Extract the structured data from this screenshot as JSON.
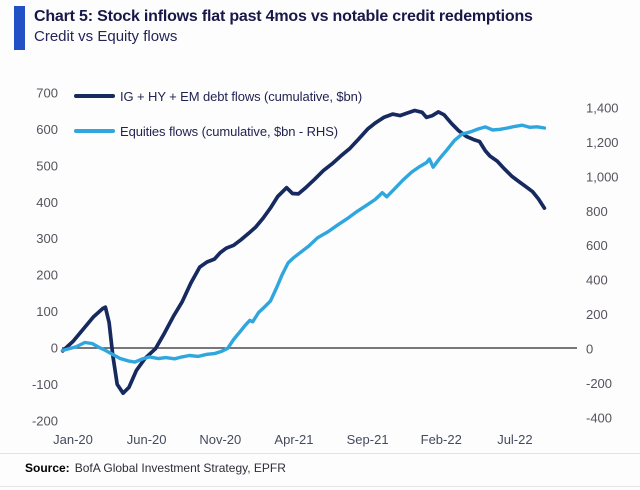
{
  "header": {
    "title": "Chart 5: Stock inflows flat past 4mos vs notable credit redemptions",
    "subtitle": "Credit vs Equity flows",
    "accent_color": "#2151c4"
  },
  "legend": {
    "items": [
      {
        "label": "IG + HY + EM debt flows (cumulative, $bn)",
        "color": "#172a60"
      },
      {
        "label": "Equities flows (cumulative, $bn - RHS)",
        "color": "#2fa6de"
      }
    ]
  },
  "source": {
    "label": "Source:",
    "text": "BofA Global Investment Strategy, EPFR"
  },
  "chart_data": {
    "type": "line",
    "title": "Credit vs Equity flows",
    "x_axis": {
      "unit": "months since Jan-2020",
      "range": [
        -0.7,
        32.3
      ],
      "tick_positions": [
        0,
        5,
        10,
        15,
        20,
        25,
        30
      ],
      "tick_labels": [
        "Jan-20",
        "Jun-20",
        "Nov-20",
        "Apr-21",
        "Sep-21",
        "Feb-22",
        "Jul-22"
      ]
    },
    "y_axis_left": {
      "label": "IG + HY + EM debt flows (cumulative, $bn)",
      "range": [
        -200,
        700
      ],
      "ticks": [
        700,
        600,
        500,
        400,
        300,
        200,
        100,
        0,
        -100,
        -200
      ]
    },
    "y_axis_right": {
      "label": "Equities flows (cumulative, $bn)",
      "range": [
        -400,
        1400
      ],
      "ticks": [
        1400,
        1200,
        1000,
        800,
        600,
        400,
        200,
        0,
        -200,
        -400
      ]
    },
    "grid": false,
    "legend_position": "top-left",
    "zero_line": true,
    "series": [
      {
        "name": "IG + HY + EM debt flows (cumulative, $bn)",
        "axis": "left",
        "color": "#172a60",
        "points": [
          [
            -0.7,
            -8
          ],
          [
            0,
            18
          ],
          [
            0.7,
            52
          ],
          [
            1.4,
            86
          ],
          [
            2.0,
            108
          ],
          [
            2.2,
            112
          ],
          [
            2.45,
            70
          ],
          [
            2.7,
            -20
          ],
          [
            3.0,
            -100
          ],
          [
            3.4,
            -124
          ],
          [
            3.8,
            -108
          ],
          [
            4.3,
            -62
          ],
          [
            4.9,
            -28
          ],
          [
            5.6,
            -2
          ],
          [
            6.2,
            40
          ],
          [
            6.8,
            86
          ],
          [
            7.4,
            126
          ],
          [
            8.0,
            178
          ],
          [
            8.6,
            222
          ],
          [
            9.1,
            236
          ],
          [
            9.6,
            244
          ],
          [
            10.0,
            262
          ],
          [
            10.4,
            274
          ],
          [
            10.9,
            282
          ],
          [
            11.4,
            297
          ],
          [
            11.9,
            314
          ],
          [
            12.4,
            332
          ],
          [
            12.9,
            356
          ],
          [
            13.4,
            384
          ],
          [
            13.9,
            416
          ],
          [
            14.5,
            440
          ],
          [
            14.9,
            424
          ],
          [
            15.3,
            423
          ],
          [
            15.8,
            440
          ],
          [
            16.4,
            463
          ],
          [
            17.0,
            487
          ],
          [
            17.6,
            506
          ],
          [
            18.2,
            528
          ],
          [
            18.8,
            548
          ],
          [
            19.4,
            574
          ],
          [
            20.0,
            601
          ],
          [
            20.5,
            617
          ],
          [
            21.1,
            633
          ],
          [
            21.7,
            642
          ],
          [
            22.2,
            638
          ],
          [
            22.7,
            645
          ],
          [
            23.2,
            652
          ],
          [
            23.7,
            647
          ],
          [
            24.0,
            633
          ],
          [
            24.4,
            638
          ],
          [
            24.8,
            648
          ],
          [
            25.2,
            640
          ],
          [
            25.7,
            616
          ],
          [
            26.2,
            596
          ],
          [
            26.7,
            581
          ],
          [
            27.2,
            572
          ],
          [
            27.6,
            567
          ],
          [
            28.0,
            541
          ],
          [
            28.3,
            527
          ],
          [
            28.8,
            513
          ],
          [
            29.3,
            491
          ],
          [
            29.8,
            471
          ],
          [
            30.3,
            456
          ],
          [
            30.8,
            441
          ],
          [
            31.2,
            429
          ],
          [
            31.6,
            409
          ],
          [
            32.0,
            384
          ]
        ]
      },
      {
        "name": "Equities flows (cumulative, $bn - RHS)",
        "axis": "right",
        "color": "#2fa6de",
        "points": [
          [
            -0.7,
            -8
          ],
          [
            0.2,
            12
          ],
          [
            0.8,
            38
          ],
          [
            1.3,
            32
          ],
          [
            1.8,
            8
          ],
          [
            2.2,
            -8
          ],
          [
            2.7,
            -32
          ],
          [
            3.2,
            -55
          ],
          [
            3.8,
            -70
          ],
          [
            4.2,
            -76
          ],
          [
            4.7,
            -58
          ],
          [
            5.2,
            -46
          ],
          [
            5.8,
            -56
          ],
          [
            6.3,
            -50
          ],
          [
            6.9,
            -57
          ],
          [
            7.4,
            -46
          ],
          [
            7.9,
            -38
          ],
          [
            8.5,
            -43
          ],
          [
            9.1,
            -31
          ],
          [
            9.6,
            -27
          ],
          [
            10.1,
            -13
          ],
          [
            10.5,
            4
          ],
          [
            10.9,
            55
          ],
          [
            11.3,
            96
          ],
          [
            11.7,
            138
          ],
          [
            12.0,
            166
          ],
          [
            12.2,
            158
          ],
          [
            12.6,
            212
          ],
          [
            13.0,
            244
          ],
          [
            13.4,
            278
          ],
          [
            13.8,
            352
          ],
          [
            14.2,
            432
          ],
          [
            14.6,
            500
          ],
          [
            14.95,
            528
          ],
          [
            15.4,
            558
          ],
          [
            16.0,
            598
          ],
          [
            16.6,
            646
          ],
          [
            17.3,
            680
          ],
          [
            18.0,
            722
          ],
          [
            18.7,
            762
          ],
          [
            19.3,
            800
          ],
          [
            19.9,
            833
          ],
          [
            20.5,
            868
          ],
          [
            21.0,
            908
          ],
          [
            21.3,
            884
          ],
          [
            21.8,
            928
          ],
          [
            22.4,
            982
          ],
          [
            23.0,
            1028
          ],
          [
            23.5,
            1058
          ],
          [
            24.0,
            1083
          ],
          [
            24.2,
            1104
          ],
          [
            24.45,
            1056
          ],
          [
            24.9,
            1108
          ],
          [
            25.4,
            1158
          ],
          [
            25.9,
            1212
          ],
          [
            26.4,
            1248
          ],
          [
            27.0,
            1262
          ],
          [
            27.5,
            1278
          ],
          [
            28.0,
            1290
          ],
          [
            28.5,
            1272
          ],
          [
            29.0,
            1276
          ],
          [
            29.5,
            1284
          ],
          [
            30.0,
            1293
          ],
          [
            30.5,
            1300
          ],
          [
            31.0,
            1288
          ],
          [
            31.5,
            1291
          ],
          [
            32.0,
            1284
          ]
        ]
      }
    ]
  }
}
